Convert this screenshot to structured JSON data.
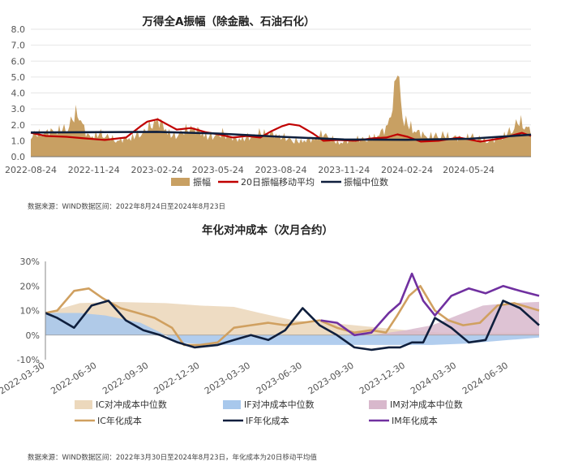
{
  "chart_data": [
    {
      "type": "area",
      "title": "万得全A振幅（除金融、石油石化）",
      "x_ticks": [
        "2022-08-24",
        "2022-11-24",
        "2023-02-24",
        "2023-05-24",
        "2023-08-24",
        "2023-11-24",
        "2024-02-24",
        "2024-05-24"
      ],
      "y_ticks": [
        "0.0",
        "1.0",
        "2.0",
        "3.0",
        "4.0",
        "5.0",
        "6.0",
        "7.0",
        "8.0"
      ],
      "ylim": [
        0,
        8
      ],
      "x_range": [
        "2022-08-24",
        "2024-08-23"
      ],
      "series": [
        {
          "name": "振幅",
          "kind": "area",
          "color": "#c8a063",
          "x": [
            "2022-08-24",
            "2022-09-20",
            "2022-10-15",
            "2022-10-31",
            "2022-11-15",
            "2022-12-05",
            "2022-12-28",
            "2023-01-20",
            "2023-02-05",
            "2023-02-24",
            "2023-03-20",
            "2023-04-15",
            "2023-05-10",
            "2023-05-31",
            "2023-06-20",
            "2023-07-10",
            "2023-07-31",
            "2023-08-25",
            "2023-09-15",
            "2023-10-10",
            "2023-10-25",
            "2023-11-15",
            "2023-12-10",
            "2024-01-05",
            "2024-01-25",
            "2024-02-05",
            "2024-02-08",
            "2024-02-20",
            "2024-03-10",
            "2024-03-25",
            "2024-04-15",
            "2024-05-10",
            "2024-05-31",
            "2024-06-20",
            "2024-07-10",
            "2024-07-25",
            "2024-08-05",
            "2024-08-23"
          ],
          "values": [
            1.4,
            1.6,
            1.8,
            2.9,
            1.3,
            1.5,
            1.0,
            1.3,
            1.6,
            2.4,
            1.3,
            1.9,
            1.3,
            1.5,
            1.1,
            1.3,
            1.6,
            1.3,
            1.0,
            1.1,
            1.5,
            0.9,
            1.1,
            1.2,
            1.8,
            3.6,
            6.0,
            2.3,
            1.6,
            1.3,
            1.4,
            1.2,
            1.3,
            1.0,
            1.2,
            1.7,
            2.3,
            1.7
          ]
        },
        {
          "name": "20日振幅移动平均",
          "kind": "line",
          "color": "#c00000",
          "x": [
            "2022-08-24",
            "2022-09-15",
            "2022-10-15",
            "2022-11-10",
            "2022-12-10",
            "2023-01-10",
            "2023-01-31",
            "2023-02-10",
            "2023-02-25",
            "2023-03-10",
            "2023-03-25",
            "2023-04-15",
            "2023-05-05",
            "2023-05-25",
            "2023-06-15",
            "2023-07-05",
            "2023-07-25",
            "2023-08-10",
            "2023-08-25",
            "2023-09-05",
            "2023-09-20",
            "2023-10-10",
            "2023-10-25",
            "2023-11-15",
            "2023-12-10",
            "2024-01-05",
            "2024-01-25",
            "2024-02-10",
            "2024-02-25",
            "2024-03-15",
            "2024-04-10",
            "2024-05-10",
            "2024-06-10",
            "2024-07-10",
            "2024-08-10",
            "2024-08-23"
          ],
          "values": [
            1.5,
            1.3,
            1.25,
            1.15,
            1.05,
            1.2,
            1.9,
            2.2,
            2.35,
            2.05,
            1.7,
            1.8,
            1.55,
            1.4,
            1.2,
            1.3,
            1.2,
            1.6,
            1.9,
            2.05,
            1.95,
            1.45,
            1.0,
            1.05,
            1.0,
            1.15,
            1.2,
            1.4,
            1.25,
            0.95,
            1.0,
            1.2,
            0.95,
            1.15,
            1.5,
            1.3
          ]
        },
        {
          "name": "振幅中位数",
          "kind": "line",
          "color": "#0f1f3d",
          "x": [
            "2022-08-24",
            "2022-11-24",
            "2023-02-24",
            "2023-05-24",
            "2023-08-24",
            "2023-11-24",
            "2024-02-24",
            "2024-05-24",
            "2024-08-23"
          ],
          "values": [
            1.52,
            1.54,
            1.56,
            1.45,
            1.25,
            1.08,
            1.06,
            1.12,
            1.38
          ]
        }
      ],
      "source": "数据来源：WIND数据区间：2022年8月24日至2024年8月23日"
    },
    {
      "type": "line",
      "title": "年化对冲成本（次月合约）",
      "x_ticks": [
        "2022-03-30",
        "2022-06-30",
        "2022-09-30",
        "2022-12-30",
        "2023-03-30",
        "2023-06-30",
        "2023-09-30",
        "2023-12-30",
        "2024-03-30",
        "2024-06-30"
      ],
      "y_ticks": [
        "-10%",
        "0%",
        "10%",
        "20%",
        "30%"
      ],
      "ylim": [
        -10,
        30
      ],
      "x_range": [
        "2022-03-30",
        "2024-08-23"
      ],
      "series": [
        {
          "name": "IC对冲成本中位数",
          "kind": "area",
          "color": "#ecd8bc",
          "x": [
            "2022-03-30",
            "2022-05-30",
            "2022-07-30",
            "2022-10-30",
            "2022-12-30",
            "2023-02-28",
            "2023-04-15",
            "2023-05-15",
            "2023-06-15",
            "2023-08-15",
            "2023-09-30",
            "2023-11-15",
            "2024-01-01",
            "2024-03-01",
            "2024-05-01",
            "2024-08-23"
          ],
          "values": [
            9,
            13,
            13.5,
            13,
            12,
            11.5,
            9,
            7.5,
            6,
            5,
            4,
            3,
            2,
            1,
            1,
            1
          ]
        },
        {
          "name": "IF对冲成本中位数",
          "kind": "area",
          "color": "#a8c8ec",
          "x": [
            "2022-03-30",
            "2022-05-30",
            "2022-07-15",
            "2022-09-15",
            "2022-10-30",
            "2022-11-15",
            "2023-01-30",
            "2023-06-30",
            "2023-09-30",
            "2023-12-30",
            "2024-02-15",
            "2024-04-15",
            "2024-06-30",
            "2024-08-23"
          ],
          "values": [
            9,
            9,
            8,
            5,
            0,
            -3,
            -4,
            -4,
            -4,
            -4,
            -4,
            -3.5,
            -2,
            -1
          ]
        },
        {
          "name": "IM对冲成本中位数",
          "kind": "area",
          "color": "#d8b8cc",
          "x": [
            "2022-07-25",
            "2023-01-01",
            "2023-07-01",
            "2023-10-30",
            "2023-12-30",
            "2024-02-15",
            "2024-03-30",
            "2024-05-15",
            "2024-06-30",
            "2024-08-23"
          ],
          "values": [
            0,
            0,
            0,
            0,
            2,
            4,
            8,
            12,
            13,
            13.5
          ]
        },
        {
          "name": "IC年化成本",
          "kind": "line",
          "color": "#d0a060",
          "x": [
            "2022-03-30",
            "2022-04-20",
            "2022-05-20",
            "2022-06-15",
            "2022-07-10",
            "2022-08-10",
            "2022-09-10",
            "2022-10-10",
            "2022-11-10",
            "2022-12-01",
            "2022-12-30",
            "2023-01-30",
            "2023-02-28",
            "2023-03-30",
            "2023-04-30",
            "2023-05-30",
            "2023-06-30",
            "2023-07-30",
            "2023-08-30",
            "2023-09-30",
            "2023-10-30",
            "2023-11-25",
            "2023-12-15",
            "2024-01-05",
            "2024-01-25",
            "2024-02-20",
            "2024-03-15",
            "2024-04-10",
            "2024-05-10",
            "2024-06-10",
            "2024-07-10",
            "2024-08-23"
          ],
          "values": [
            9,
            10,
            18,
            19,
            15,
            11,
            9,
            7,
            3,
            -4,
            -4,
            -3,
            3,
            4,
            5,
            4,
            5,
            6,
            3,
            1,
            2,
            1,
            8,
            16,
            20,
            10,
            6,
            4,
            5,
            12,
            13,
            10
          ]
        },
        {
          "name": "IF年化成本",
          "kind": "line",
          "color": "#0f1f3d",
          "x": [
            "2022-03-30",
            "2022-04-20",
            "2022-05-20",
            "2022-06-20",
            "2022-07-20",
            "2022-08-20",
            "2022-09-20",
            "2022-10-20",
            "2022-11-20",
            "2022-12-20",
            "2023-01-30",
            "2023-02-28",
            "2023-03-30",
            "2023-04-30",
            "2023-05-30",
            "2023-06-30",
            "2023-07-30",
            "2023-08-30",
            "2023-09-30",
            "2023-10-30",
            "2023-11-30",
            "2023-12-20",
            "2024-01-10",
            "2024-01-30",
            "2024-02-20",
            "2024-03-20",
            "2024-04-20",
            "2024-05-20",
            "2024-06-20",
            "2024-07-20",
            "2024-08-23"
          ],
          "values": [
            9,
            7,
            3,
            12,
            14,
            6,
            2,
            0,
            -3,
            -5,
            -4,
            -2,
            0,
            -2,
            2,
            11,
            4,
            0,
            -5,
            -6,
            -5,
            -5,
            -3,
            -3,
            7,
            3,
            -3,
            -2,
            14,
            11,
            4
          ]
        },
        {
          "name": "IM年化成本",
          "kind": "line",
          "color": "#7030a0",
          "x": [
            "2023-08-01",
            "2023-08-30",
            "2023-09-30",
            "2023-10-30",
            "2023-11-30",
            "2023-12-20",
            "2024-01-10",
            "2024-01-30",
            "2024-02-20",
            "2024-03-20",
            "2024-04-20",
            "2024-05-20",
            "2024-06-20",
            "2024-07-20",
            "2024-08-23"
          ],
          "values": [
            6,
            5,
            0,
            1,
            9,
            13,
            25,
            14,
            8,
            16,
            19,
            17,
            20,
            18,
            16
          ]
        }
      ],
      "source": "数据来源：WIND数据区间：2022年3月30日至2024年8月23日，年化成本为20日移动平均值"
    }
  ]
}
